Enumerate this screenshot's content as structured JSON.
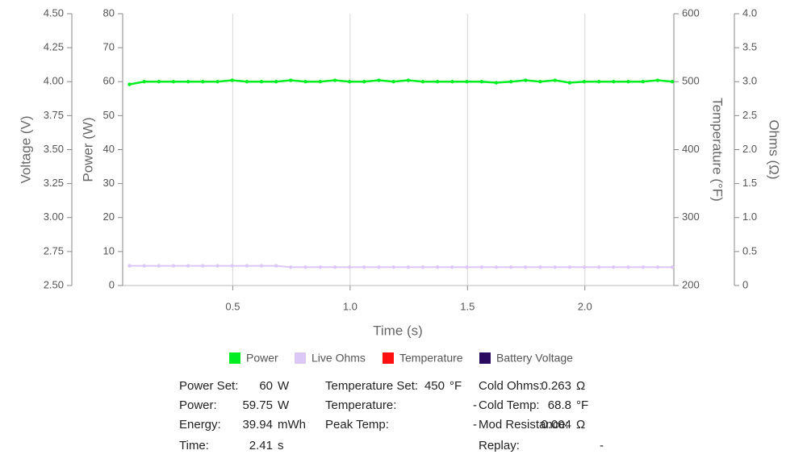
{
  "chart_data": {
    "type": "line",
    "x_label": "Time (s)",
    "xlim": [
      0.031,
      2.379
    ],
    "xticks": [
      0.5,
      {
        "value": 1,
        "label": "1.0"
      },
      1.5,
      {
        "value": 2,
        "label": "2.0"
      }
    ],
    "grid": true,
    "axes": [
      {
        "label": "Voltage (V)",
        "lim": [
          2.5,
          4.5
        ],
        "ticks": [
          {
            "value": 2.5,
            "label": "2.50"
          },
          2.75,
          {
            "value": 3,
            "label": "3.00"
          },
          3.25,
          {
            "value": 3.5,
            "label": "3.50"
          },
          3.75,
          {
            "value": 4,
            "label": "4.00"
          },
          4.25,
          {
            "value": 4.5,
            "label": "4.50"
          }
        ]
      },
      {
        "label": "Power (W)",
        "lim": [
          0,
          80
        ],
        "ticks": [
          0,
          10,
          20,
          30,
          40,
          50,
          60,
          70,
          80
        ]
      },
      {
        "label": "Temperature (°F)",
        "lim": [
          200,
          600
        ],
        "ticks": [
          200,
          300,
          400,
          500,
          600
        ]
      },
      {
        "label": "Ohms (Ω)",
        "lim": [
          0,
          4
        ],
        "ticks": [
          0,
          0.5,
          {
            "value": 1,
            "label": "1.0"
          },
          1.5,
          {
            "value": 2,
            "label": "2.0"
          },
          2.5,
          {
            "value": 3,
            "label": "3.0"
          },
          3.5,
          {
            "value": 4,
            "label": "4.0"
          }
        ]
      }
    ],
    "x": [
      0.06,
      0.1225,
      0.185,
      0.2475,
      0.31,
      0.3725,
      0.435,
      0.4975,
      0.56,
      0.6225,
      0.685,
      0.7475,
      0.81,
      0.8725,
      0.935,
      0.9975,
      1.06,
      1.1225,
      1.185,
      1.2475,
      1.31,
      1.3725,
      1.435,
      1.4975,
      1.56,
      1.6225,
      1.685,
      1.7475,
      1.81,
      1.8725,
      1.935,
      1.9975,
      2.06,
      2.1225,
      2.185,
      2.2475,
      2.31,
      2.3725
    ],
    "series": [
      {
        "name": "Power",
        "color": "#00ee22",
        "axis": 1,
        "values": [
          59.2,
          60,
          60,
          60,
          60,
          60,
          60,
          60.4,
          60,
          60,
          60,
          60.4,
          60,
          60,
          60.4,
          60,
          60,
          60.4,
          60,
          60.4,
          60,
          60,
          60,
          60,
          60,
          59.7,
          60,
          60.4,
          60,
          60.4,
          59.7,
          60,
          60,
          60,
          60,
          60,
          60.4,
          60
        ]
      },
      {
        "name": "Live Ohms",
        "color": "#dcc8f7",
        "axis": 3,
        "values": [
          0.29,
          0.29,
          0.29,
          0.29,
          0.29,
          0.29,
          0.29,
          0.29,
          0.29,
          0.29,
          0.29,
          0.27,
          0.27,
          0.27,
          0.27,
          0.27,
          0.27,
          0.27,
          0.27,
          0.27,
          0.27,
          0.27,
          0.27,
          0.27,
          0.27,
          0.27,
          0.27,
          0.27,
          0.27,
          0.27,
          0.27,
          0.27,
          0.27,
          0.27,
          0.27,
          0.27,
          0.27,
          0.27
        ]
      },
      {
        "name": "Temperature",
        "color": "#ff1010",
        "axis": 2
      },
      {
        "name": "Battery Voltage",
        "color": "#2a0a5e",
        "axis": 0
      }
    ]
  },
  "stats": [
    [
      {
        "label": "Power Set:",
        "value": "60",
        "unit": "W"
      },
      {
        "label": "Power:",
        "value": "59.75",
        "unit": "W"
      },
      {
        "label": "Energy:",
        "value": "39.94",
        "unit": "mWh"
      },
      {
        "label": "Time:",
        "value": "2.41",
        "unit": "s"
      }
    ],
    [
      {
        "label": "Temperature Set:",
        "value": "450",
        "unit": "°F"
      },
      {
        "label": "Temperature:",
        "value": "-"
      },
      {
        "label": "Peak Temp:",
        "value": "-"
      }
    ],
    [
      {
        "label": "Cold Ohms:",
        "value": "0.263",
        "unit": "Ω"
      },
      {
        "label": "Cold Temp:",
        "value": "68.8",
        "unit": "°F"
      },
      {
        "label": "Mod Resistance:",
        "value": "0.004",
        "unit": "Ω"
      },
      {
        "label": "Replay:",
        "value": "-"
      }
    ]
  ]
}
